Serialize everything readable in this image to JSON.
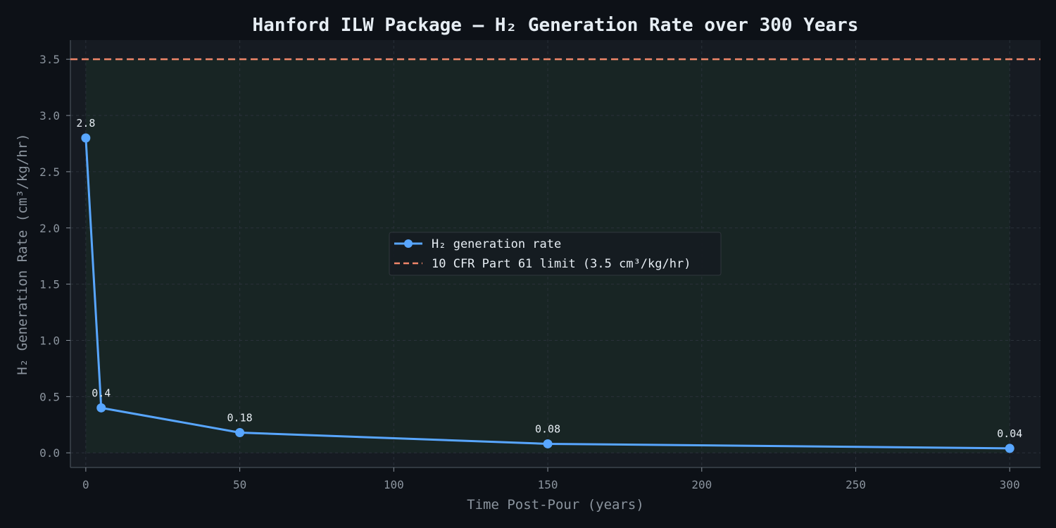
{
  "chart_data": {
    "type": "line",
    "title": "Hanford ILW Package — H₂ Generation Rate over 300 Years",
    "xlabel": "Time Post-Pour (years)",
    "ylabel": "H₂ Generation Rate (cm³/kg/hr)",
    "xlim": [
      -5,
      310
    ],
    "ylim": [
      -0.13,
      3.67
    ],
    "x_ticks": [
      0,
      50,
      100,
      150,
      200,
      250,
      300
    ],
    "y_ticks": [
      0.0,
      0.5,
      1.0,
      1.5,
      2.0,
      2.5,
      3.0,
      3.5
    ],
    "x_tick_labels": [
      "0",
      "50",
      "100",
      "150",
      "200",
      "250",
      "300"
    ],
    "y_tick_labels": [
      "0.0",
      "0.5",
      "1.0",
      "1.5",
      "2.0",
      "2.5",
      "3.0",
      "3.5"
    ],
    "grid": true,
    "legend_position": "center",
    "series": [
      {
        "name": "H₂ generation rate",
        "x": [
          0,
          5,
          50,
          150,
          300
        ],
        "y": [
          2.8,
          0.4,
          0.18,
          0.08,
          0.04
        ],
        "data_labels": [
          "2.8",
          "0.4",
          "0.18",
          "0.08",
          "0.04"
        ],
        "color": "#58a6ff",
        "style": "solid-with-markers"
      }
    ],
    "reference_lines": [
      {
        "name": "10 CFR Part 61 limit (3.5 cm³/kg/hr)",
        "y": 3.5,
        "color": "#f0866a",
        "style": "dashed"
      }
    ],
    "shaded_region": {
      "x": [
        0,
        300
      ],
      "y": [
        0,
        3.5
      ],
      "color": "#2ea043"
    }
  },
  "colors": {
    "background": "#0d1117",
    "plot_background": "#161b22",
    "grid": "#2a313a",
    "text": "#e6edf3",
    "muted_text": "#8b949e"
  }
}
